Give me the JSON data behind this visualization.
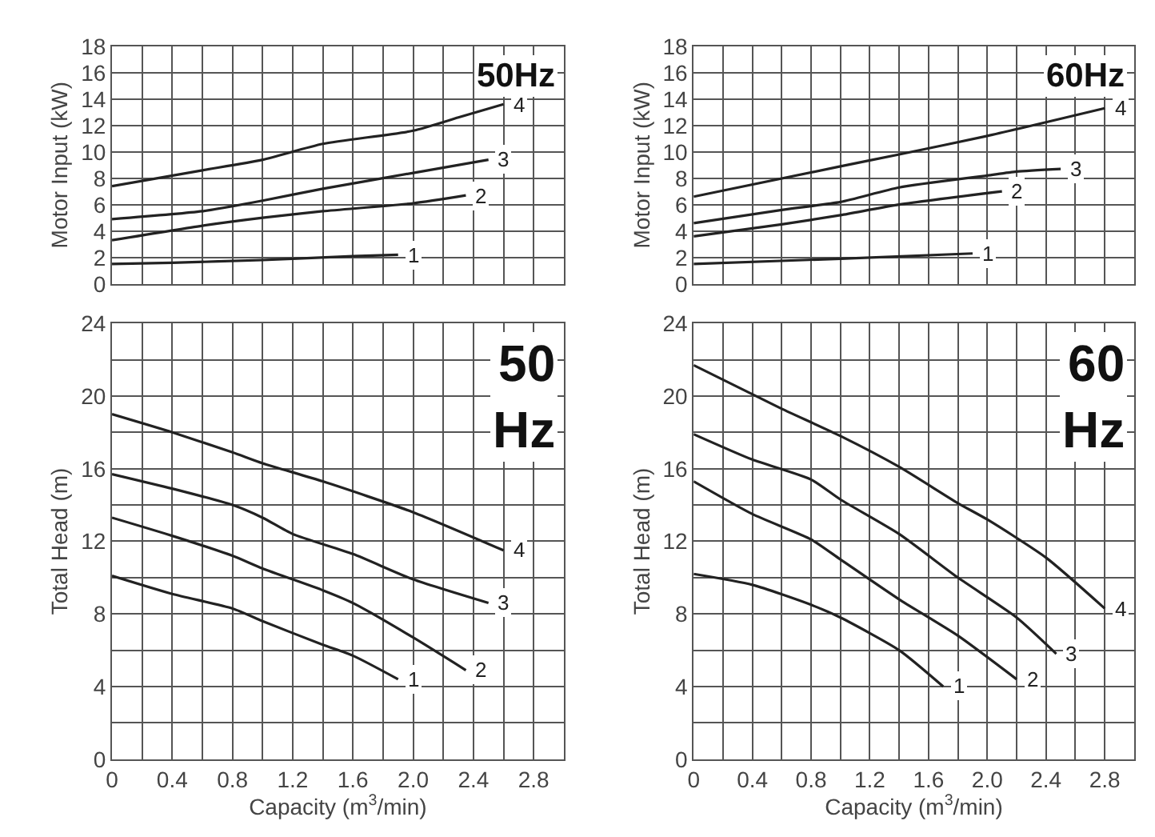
{
  "chart_data": [
    {
      "type": "line",
      "ylabel": "Motor Input (kW)",
      "annotations": [
        "50Hz"
      ],
      "xlim": [
        0,
        3.0
      ],
      "ylim": [
        0,
        18
      ],
      "tick_labels": "y",
      "grid": true,
      "xticks": [
        {
          "value": 0,
          "label": null
        },
        {
          "value": 0.2,
          "label": null
        },
        {
          "value": 0.4,
          "label": null
        },
        {
          "value": 0.6,
          "label": null
        },
        {
          "value": 0.8,
          "label": null
        },
        {
          "value": 1.0,
          "label": null
        },
        {
          "value": 1.2,
          "label": null
        },
        {
          "value": 1.4,
          "label": null
        },
        {
          "value": 1.6,
          "label": null
        },
        {
          "value": 1.8,
          "label": null
        },
        {
          "value": 2.0,
          "label": null
        },
        {
          "value": 2.2,
          "label": null
        },
        {
          "value": 2.4,
          "label": null
        },
        {
          "value": 2.6,
          "label": null
        },
        {
          "value": 2.8,
          "label": null
        },
        {
          "value": 3.0,
          "label": null
        }
      ],
      "yticks": [
        0,
        2,
        4,
        6,
        8,
        10,
        12,
        14,
        16,
        18
      ],
      "series": [
        {
          "name": "1",
          "color": "#222222",
          "x": [
            0,
            0.4,
            1.0,
            1.6,
            1.9
          ],
          "values": [
            1.5,
            1.6,
            1.8,
            2.1,
            2.2
          ]
        },
        {
          "name": "2",
          "color": "#222222",
          "x": [
            0,
            0.6,
            1.0,
            1.4,
            2.0,
            2.35
          ],
          "values": [
            3.3,
            4.4,
            5.0,
            5.5,
            6.1,
            6.7
          ]
        },
        {
          "name": "3",
          "color": "#222222",
          "x": [
            0,
            0.6,
            1.0,
            1.4,
            2.0,
            2.5
          ],
          "values": [
            4.9,
            5.5,
            6.3,
            7.2,
            8.4,
            9.4
          ]
        },
        {
          "name": "4",
          "color": "#222222",
          "x": [
            0,
            0.6,
            1.0,
            1.4,
            2.0,
            2.3,
            2.6
          ],
          "values": [
            7.4,
            8.6,
            9.4,
            10.6,
            11.6,
            12.6,
            13.6
          ]
        }
      ]
    },
    {
      "type": "line",
      "ylabel": "Motor Input (kW)",
      "annotations": [
        "60Hz"
      ],
      "xlim": [
        0,
        3.0
      ],
      "ylim": [
        0,
        18
      ],
      "tick_labels": "y",
      "grid": true,
      "xticks": [
        {
          "value": 0,
          "label": null
        },
        {
          "value": 0.2,
          "label": null
        },
        {
          "value": 0.4,
          "label": null
        },
        {
          "value": 0.6,
          "label": null
        },
        {
          "value": 0.8,
          "label": null
        },
        {
          "value": 1.0,
          "label": null
        },
        {
          "value": 1.2,
          "label": null
        },
        {
          "value": 1.4,
          "label": null
        },
        {
          "value": 1.6,
          "label": null
        },
        {
          "value": 1.8,
          "label": null
        },
        {
          "value": 2.0,
          "label": null
        },
        {
          "value": 2.2,
          "label": null
        },
        {
          "value": 2.4,
          "label": null
        },
        {
          "value": 2.6,
          "label": null
        },
        {
          "value": 2.8,
          "label": null
        },
        {
          "value": 3.0,
          "label": null
        }
      ],
      "yticks": [
        0,
        2,
        4,
        6,
        8,
        10,
        12,
        14,
        16,
        18
      ],
      "series": [
        {
          "name": "1",
          "color": "#222222",
          "x": [
            0,
            1.0,
            1.9
          ],
          "values": [
            1.5,
            1.9,
            2.3
          ]
        },
        {
          "name": "2",
          "color": "#222222",
          "x": [
            0,
            0.6,
            1.0,
            1.4,
            2.1
          ],
          "values": [
            3.6,
            4.5,
            5.2,
            6.0,
            7.0
          ]
        },
        {
          "name": "3",
          "color": "#222222",
          "x": [
            0,
            0.6,
            1.0,
            1.4,
            2.0,
            2.2,
            2.5
          ],
          "values": [
            4.6,
            5.6,
            6.2,
            7.3,
            8.2,
            8.5,
            8.7
          ]
        },
        {
          "name": "4",
          "color": "#222222",
          "x": [
            0,
            1.0,
            1.4,
            2.0,
            2.8
          ],
          "values": [
            6.6,
            8.9,
            9.8,
            11.2,
            13.3
          ]
        }
      ]
    },
    {
      "type": "line",
      "xlabel": "Capacity (m$^{3}$/min)",
      "ylabel": "Total Head (m)",
      "annotations": [
        "50\nHz"
      ],
      "xlim": [
        0,
        3.0
      ],
      "ylim": [
        0,
        24
      ],
      "grid": true,
      "xticks": [
        0,
        {
          "value": 0.2,
          "label": null
        },
        0.4,
        {
          "value": 0.6,
          "label": null
        },
        0.8,
        {
          "value": 1.0,
          "label": null
        },
        1.2,
        {
          "value": 1.4,
          "label": null
        },
        1.6,
        {
          "value": 1.8,
          "label": null
        },
        {
          "value": 2.0,
          "label": "2.0"
        },
        {
          "value": 2.2,
          "label": null
        },
        2.4,
        {
          "value": 2.6,
          "label": null
        },
        2.8,
        {
          "value": 3.0,
          "label": null
        }
      ],
      "yticks": [
        0,
        {
          "value": 2,
          "label": null
        },
        4,
        {
          "value": 6,
          "label": null
        },
        8,
        {
          "value": 10,
          "label": null
        },
        12,
        {
          "value": 14,
          "label": null
        },
        16,
        {
          "value": 18,
          "label": null
        },
        20,
        {
          "value": 22,
          "label": null
        },
        24
      ],
      "series": [
        {
          "name": "1",
          "color": "#222222",
          "x": [
            0,
            0.4,
            0.8,
            1.0,
            1.4,
            1.6,
            1.9
          ],
          "values": [
            10.1,
            9.1,
            8.3,
            7.6,
            6.3,
            5.7,
            4.4
          ]
        },
        {
          "name": "2",
          "color": "#222222",
          "x": [
            0,
            0.4,
            0.8,
            1.0,
            1.4,
            1.6,
            2.0,
            2.35
          ],
          "values": [
            13.3,
            12.3,
            11.2,
            10.5,
            9.3,
            8.6,
            6.7,
            4.9
          ]
        },
        {
          "name": "3",
          "color": "#222222",
          "x": [
            0,
            0.4,
            0.8,
            1.0,
            1.2,
            1.6,
            2.0,
            2.5
          ],
          "values": [
            15.7,
            14.9,
            14.0,
            13.3,
            12.4,
            11.3,
            9.9,
            8.6
          ]
        },
        {
          "name": "4",
          "color": "#222222",
          "x": [
            0,
            0.4,
            0.8,
            1.0,
            1.4,
            2.0,
            2.6
          ],
          "values": [
            19.0,
            18.0,
            16.9,
            16.3,
            15.3,
            13.6,
            11.5
          ]
        }
      ]
    },
    {
      "type": "line",
      "xlabel": "Capacity (m$^{3}$/min)",
      "ylabel": "Total Head (m)",
      "annotations": [
        "60\nHz"
      ],
      "xlim": [
        0,
        3.0
      ],
      "ylim": [
        0,
        24
      ],
      "grid": true,
      "xticks": [
        0,
        {
          "value": 0.2,
          "label": null
        },
        0.4,
        {
          "value": 0.6,
          "label": null
        },
        0.8,
        {
          "value": 1.0,
          "label": null
        },
        1.2,
        {
          "value": 1.4,
          "label": null
        },
        1.6,
        {
          "value": 1.8,
          "label": null
        },
        {
          "value": 2.0,
          "label": "2.0"
        },
        {
          "value": 2.2,
          "label": null
        },
        2.4,
        {
          "value": 2.6,
          "label": null
        },
        2.8,
        {
          "value": 3.0,
          "label": null
        }
      ],
      "yticks": [
        0,
        {
          "value": 2,
          "label": null
        },
        4,
        {
          "value": 6,
          "label": null
        },
        8,
        {
          "value": 10,
          "label": null
        },
        12,
        {
          "value": 14,
          "label": null
        },
        16,
        {
          "value": 18,
          "label": null
        },
        20,
        {
          "value": 22,
          "label": null
        },
        24
      ],
      "series": [
        {
          "name": "1",
          "color": "#222222",
          "x": [
            0,
            0.4,
            0.8,
            1.0,
            1.4,
            1.7
          ],
          "values": [
            10.2,
            9.6,
            8.5,
            7.8,
            6.0,
            4.0
          ]
        },
        {
          "name": "2",
          "color": "#222222",
          "x": [
            0,
            0.4,
            0.8,
            1.0,
            1.4,
            1.8,
            2.2
          ],
          "values": [
            15.3,
            13.5,
            12.1,
            11.0,
            8.8,
            6.8,
            4.4
          ]
        },
        {
          "name": "3",
          "color": "#222222",
          "x": [
            0,
            0.4,
            0.8,
            1.0,
            1.4,
            1.8,
            2.2,
            2.47
          ],
          "values": [
            17.9,
            16.5,
            15.4,
            14.3,
            12.4,
            10.0,
            7.8,
            5.8
          ]
        },
        {
          "name": "4",
          "color": "#222222",
          "x": [
            0,
            0.3,
            0.6,
            1.0,
            1.4,
            1.8,
            2.0,
            2.4,
            2.8
          ],
          "values": [
            21.7,
            20.5,
            19.3,
            17.8,
            16.1,
            14.1,
            13.2,
            11.1,
            8.3
          ]
        }
      ]
    }
  ]
}
